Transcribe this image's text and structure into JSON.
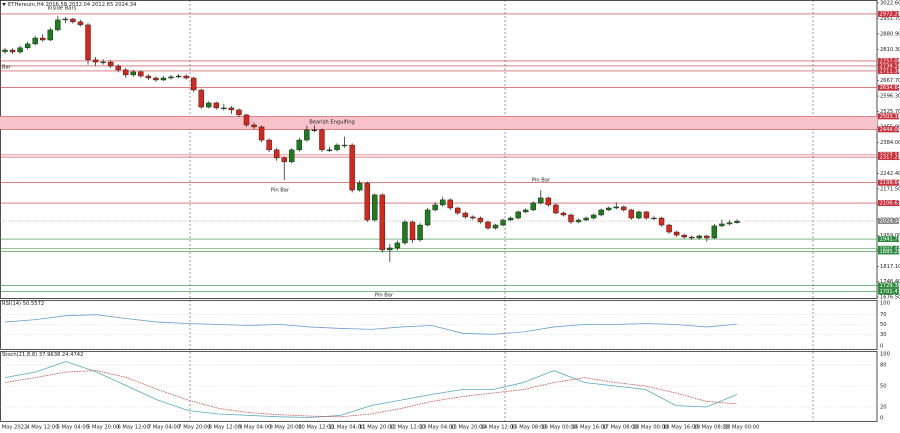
{
  "chart_data": [
    {
      "type": "candlestick",
      "title": "ETHereum,H4 2016.58 2032.04 2012.65 2024.34",
      "open": [
        2800,
        2807,
        2798,
        2817,
        2835,
        2862,
        2853,
        2899,
        2945,
        2949,
        2936,
        2922,
        2762,
        2752,
        2752,
        2734,
        2716,
        2693,
        2707,
        2688,
        2679,
        2670,
        2679,
        2684,
        2688,
        2679,
        2624,
        2546,
        2565,
        2542,
        2542,
        2533,
        2510,
        2464,
        2455,
        2395,
        2350,
        2313,
        2295,
        2350,
        2395,
        2441,
        2441,
        2350,
        2350,
        2372,
        2372,
        2166,
        2198,
        2029,
        2144,
        1892,
        1901,
        1924,
        2020,
        1938,
        2006,
        2075,
        2098,
        2121,
        2084,
        2061,
        2043,
        2038,
        2020,
        1992,
        2006,
        2029,
        2038,
        2066,
        2075,
        2107,
        2130,
        2098,
        2061,
        2052,
        2020,
        2029,
        2038,
        2052,
        2075,
        2084,
        2089,
        2075,
        2038,
        2066,
        2038,
        2038,
        2006,
        1974,
        1960,
        1951,
        1947,
        1956,
        1947,
        2002,
        2011,
        2016.58
      ],
      "high": [
        2817,
        2815,
        2827,
        2845,
        2872,
        2880,
        2910,
        2962,
        2958,
        2955,
        2945,
        2930,
        2775,
        2765,
        2760,
        2742,
        2725,
        2715,
        2712,
        2695,
        2686,
        2688,
        2692,
        2697,
        2695,
        2685,
        2630,
        2572,
        2570,
        2560,
        2550,
        2540,
        2515,
        2475,
        2462,
        2402,
        2358,
        2320,
        2358,
        2405,
        2460,
        2462,
        2448,
        2365,
        2380,
        2410,
        2380,
        2210,
        2205,
        2150,
        2150,
        1920,
        1935,
        2030,
        2028,
        2015,
        2085,
        2110,
        2135,
        2128,
        2090,
        2068,
        2050,
        2045,
        2026,
        2012,
        2035,
        2045,
        2072,
        2082,
        2115,
        2166,
        2136,
        2104,
        2068,
        2058,
        2036,
        2045,
        2058,
        2082,
        2090,
        2110,
        2095,
        2080,
        2072,
        2070,
        2046,
        2044,
        2012,
        1980,
        1966,
        1958,
        1962,
        1960,
        2010,
        2030,
        2028,
        2032.04
      ],
      "low": [
        2790,
        2788,
        2790,
        2810,
        2828,
        2845,
        2848,
        2892,
        2930,
        2928,
        2915,
        2740,
        2735,
        2740,
        2725,
        2705,
        2680,
        2685,
        2680,
        2670,
        2662,
        2665,
        2672,
        2678,
        2672,
        2615,
        2538,
        2540,
        2535,
        2530,
        2515,
        2500,
        2455,
        2445,
        2385,
        2340,
        2300,
        2212,
        2288,
        2342,
        2388,
        2430,
        2340,
        2340,
        2343,
        2360,
        2155,
        2160,
        2020,
        2020,
        1880,
        1837,
        1890,
        1915,
        1925,
        1930,
        2000,
        2068,
        2090,
        2075,
        2052,
        2035,
        2030,
        2012,
        1985,
        1986,
        2000,
        2022,
        2032,
        2060,
        2070,
        2100,
        2090,
        2055,
        2045,
        2012,
        2014,
        2022,
        2032,
        2046,
        2070,
        2078,
        2068,
        2030,
        2032,
        2030,
        2028,
        1998,
        1966,
        1952,
        1944,
        1938,
        1940,
        1930,
        1942,
        1996,
        2005,
        2012.65
      ],
      "close": [
        2807,
        2798,
        2817,
        2835,
        2862,
        2853,
        2899,
        2945,
        2949,
        2936,
        2922,
        2762,
        2752,
        2752,
        2734,
        2716,
        2693,
        2707,
        2688,
        2679,
        2670,
        2679,
        2684,
        2688,
        2679,
        2624,
        2546,
        2565,
        2542,
        2542,
        2533,
        2510,
        2464,
        2455,
        2395,
        2350,
        2313,
        2295,
        2350,
        2395,
        2441,
        2441,
        2350,
        2350,
        2372,
        2372,
        2166,
        2198,
        2029,
        2144,
        1892,
        1901,
        1924,
        2020,
        1938,
        2006,
        2075,
        2098,
        2121,
        2084,
        2061,
        2043,
        2038,
        2020,
        1992,
        2006,
        2029,
        2038,
        2066,
        2075,
        2107,
        2130,
        2098,
        2061,
        2052,
        2020,
        2029,
        2038,
        2052,
        2075,
        2084,
        2089,
        2075,
        2038,
        2066,
        2038,
        2038,
        2006,
        1974,
        1960,
        1951,
        1947,
        1956,
        1947,
        2002,
        2011,
        2016.58,
        2024.34
      ],
      "up_color": "#1b7d1b",
      "down_color": "#d8261c",
      "ylim": [
        1672,
        3036
      ],
      "yticks": [
        {
          "value": 3022.6,
          "label": "3022.60"
        },
        {
          "value": 2951.7,
          "label": "2951.70"
        },
        {
          "value": 2880.9,
          "label": "2880.90"
        },
        {
          "value": 2810.3,
          "label": "2810.30"
        },
        {
          "value": 2739.3,
          "label": "2739.30"
        },
        {
          "value": 2667.7,
          "label": "2667.70"
        },
        {
          "value": 2596.3,
          "label": "2596.30"
        },
        {
          "value": 2525.7,
          "label": "2525.70"
        },
        {
          "value": 2455,
          "label": "2455.00"
        },
        {
          "value": 2384,
          "label": "2384.00"
        },
        {
          "value": 2313.2,
          "label": "2313.20"
        },
        {
          "value": 2242.4,
          "label": "2242.40"
        },
        {
          "value": 2171.5,
          "label": "2171.50"
        },
        {
          "value": 2100.7,
          "label": "2100.70"
        },
        {
          "value": 2029.8,
          "label": "2029.80"
        },
        {
          "value": 1959,
          "label": "1959.00"
        },
        {
          "value": 1888.1,
          "label": "1888.10"
        },
        {
          "value": 1817.1,
          "label": "1817.10"
        },
        {
          "value": 1746.4,
          "label": "1746.40"
        },
        {
          "value": 1676.5,
          "label": "1676.50"
        }
      ],
      "x_labels": [
        "3 May 2022",
        "4 May 12:00",
        "5 May 04:00",
        "5 May 20:00",
        "6 May 12:00",
        "7 May 04:00",
        "7 May 20:00",
        "8 May 12:00",
        "9 May 04:00",
        "9 May 20:00",
        "10 May 12:00",
        "11 May 04:00",
        "11 May 20:00",
        "12 May 12:00",
        "13 May 04:00",
        "13 May 20:00",
        "14 May 12:00",
        "15 May 08:00",
        "16 May 00:00",
        "16 May 16:00",
        "17 May 08:00",
        "18 May 00:00",
        "18 May 16:00",
        "19 May 08:00",
        "20 May 00:00"
      ],
      "levels": [
        {
          "value": 2972.2,
          "label": "2972.20",
          "color": "#c8323c"
        },
        {
          "value": 2757,
          "label": "2757.00",
          "color": "#c8323c"
        },
        {
          "value": 2734.1,
          "label": "2734.10",
          "color": "#c8323c"
        },
        {
          "value": 2711.3,
          "label": "2711.30",
          "color": "#c8323c"
        },
        {
          "value": 2634.64,
          "label": "2634.64",
          "color": "#c8323c"
        },
        {
          "value": 2327.1,
          "label": "2327.10",
          "color": "#c8323c"
        },
        {
          "value": 2317.2,
          "label": "2317.20",
          "color": "#c8323c"
        },
        {
          "value": 2199.64,
          "label": "2199.64",
          "color": "#c8323c"
        },
        {
          "value": 2106.67,
          "label": "2106.67",
          "color": "#c8323c"
        },
        {
          "value": 1941.78,
          "label": "1941.78",
          "color": "#2e8b3e"
        },
        {
          "value": 1897.4,
          "label": "1897.40",
          "color": "#2e8b3e"
        },
        {
          "value": 1885.2,
          "label": "1885.20",
          "color": "#2e8b3e"
        },
        {
          "value": 1729.3,
          "label": "1729.30",
          "color": "#2e8b3e"
        },
        {
          "value": 1701.47,
          "label": "1701.47",
          "color": "#2e8b3e"
        }
      ],
      "zone": {
        "color": "#f8c3cb",
        "line_color": "#c8323c",
        "high": {
          "value": 2503.38,
          "label": "2503.38"
        },
        "low": {
          "value": 2444.06,
          "label": "2444.06"
        }
      },
      "annotations": [
        "Inside Bars",
        "Bar",
        "Bearish Engulfing",
        "Pin Bar",
        "Pin Bar",
        "Pin Bar"
      ]
    },
    {
      "type": "line",
      "title": "RSI(14) 50.5572",
      "series": [
        {
          "color": "#6a9fd0",
          "values": [
            55,
            60,
            68,
            70,
            62,
            55,
            52,
            50,
            48,
            50,
            45,
            42,
            40,
            45,
            48,
            32,
            30,
            35,
            45,
            50,
            50,
            52,
            50,
            45,
            50.5572
          ]
        }
      ],
      "ylim": [
        0,
        100
      ],
      "yticks": [
        0,
        30,
        50,
        70,
        100
      ]
    },
    {
      "type": "line",
      "title": "Stoch(21,8,8) 37.9638 24.4742",
      "series": [
        {
          "color": "#5aa9c0",
          "dashed": false,
          "values": [
            62,
            70,
            85,
            70,
            50,
            30,
            15,
            10,
            8,
            6,
            5,
            8,
            22,
            30,
            38,
            45,
            45,
            55,
            72,
            55,
            50,
            45,
            22,
            20,
            37.9638
          ]
        },
        {
          "color": "#c0504d",
          "dashed": true,
          "values": [
            55,
            62,
            70,
            72,
            62,
            45,
            30,
            18,
            12,
            9,
            7,
            6,
            10,
            18,
            28,
            35,
            40,
            45,
            55,
            62,
            55,
            50,
            40,
            28,
            24.4742
          ]
        }
      ],
      "ylim": [
        0,
        100
      ],
      "yticks": [
        0,
        20,
        50,
        80,
        100
      ]
    }
  ]
}
